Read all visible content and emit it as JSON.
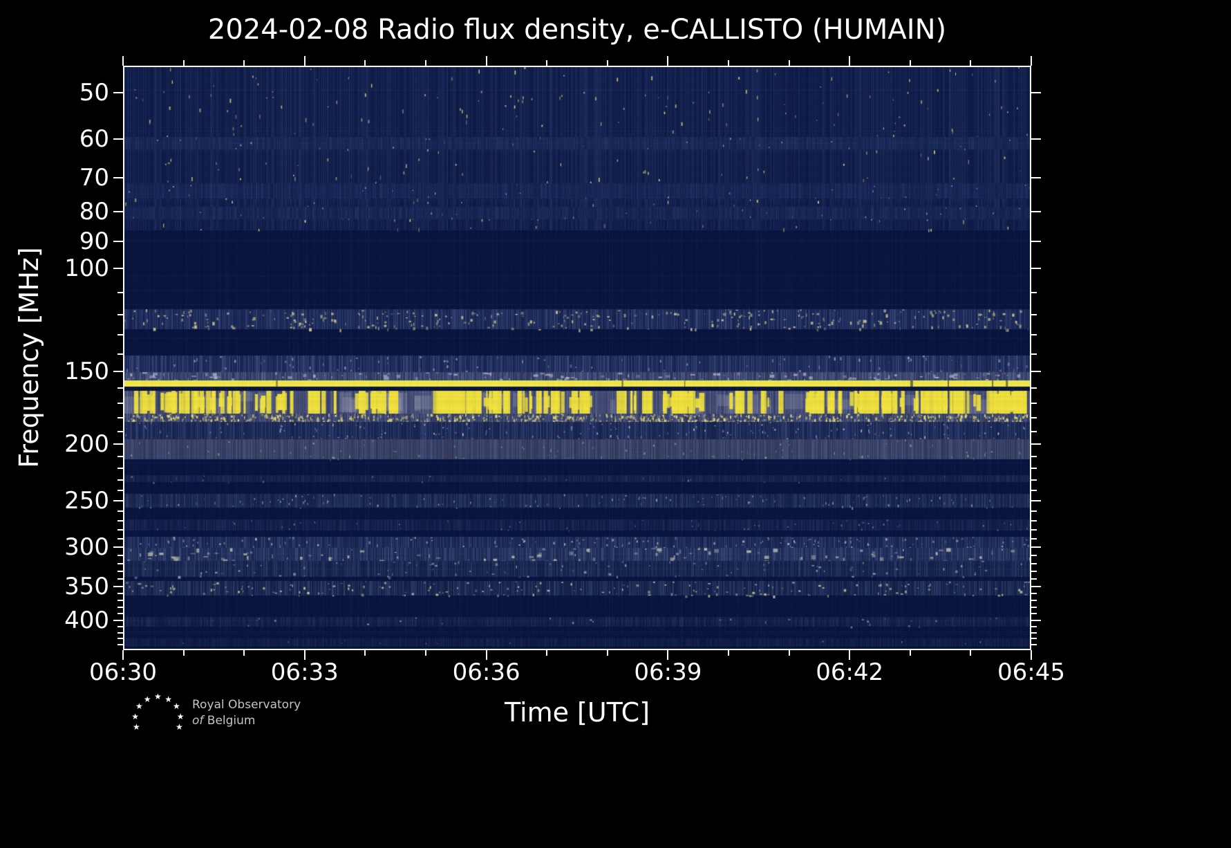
{
  "title": "2024-02-08 Radio flux density, e-CALLISTO (HUMAIN)",
  "xlabel": "Time [UTC]",
  "ylabel": "Frequency [MHz]",
  "footer": {
    "org_line1": "Royal Observatory",
    "org_line2_prefix": "of",
    "org_line2": "Belgium"
  },
  "chart_data": {
    "type": "heatmap",
    "title": "2024-02-08 Radio flux density, e-CALLISTO (HUMAIN)",
    "xlabel": "Time [UTC]",
    "ylabel": "Frequency [MHz]",
    "x_ticks": [
      "06:30",
      "06:33",
      "06:36",
      "06:39",
      "06:42",
      "06:45"
    ],
    "x_major_interval_min": 3,
    "x_minor_interval_min": 1,
    "y_ticks": [
      50,
      60,
      70,
      80,
      90,
      100,
      150,
      200,
      250,
      300,
      350,
      400
    ],
    "y_scale": "log",
    "y_axis_inverted": true,
    "y_range_mhz": [
      45,
      450
    ],
    "grid": false,
    "legend": "none",
    "colormap": {
      "background": "#0a1640",
      "low": "#16295f",
      "mid": "#3c4a78",
      "high": "#b8b9a8",
      "peak": "#f8ef4e"
    },
    "features": [
      {
        "f0": 45,
        "f1": 86,
        "kind": "noise",
        "tint": "#111f4d",
        "colNoise": 0.1,
        "speckles": 300,
        "speckleColor": "#e6d97e",
        "speckleW": 1,
        "speckleH": 5,
        "desc": "broadband background noise with sparse RFI speckles"
      },
      {
        "f0": 59.5,
        "f1": 62.5,
        "kind": "noise",
        "tint": "#182858",
        "colNoise": 0.08,
        "speckles": 30,
        "speckleColor": "#aeb6cf",
        "speckleW": 1,
        "speckleH": 2,
        "desc": "faint horizontal band ~60 MHz"
      },
      {
        "f0": 71.5,
        "f1": 76,
        "kind": "noise",
        "tint": "#172656",
        "colNoise": 0.08,
        "speckles": 30,
        "speckleColor": "#aeb6cf",
        "speckleW": 1,
        "speckleH": 2,
        "desc": "faint band ~74 MHz"
      },
      {
        "f0": 78.5,
        "f1": 82.5,
        "kind": "noise",
        "tint": "#172656",
        "colNoise": 0.08,
        "speckles": 30,
        "speckleColor": "#aeb6cf",
        "speckleW": 1,
        "speckleH": 2,
        "desc": "faint band ~80 MHz"
      },
      {
        "f0": 117.5,
        "f1": 127,
        "kind": "noise",
        "tint": "#1c2b5b",
        "colNoise": 0.2,
        "speckles": 330,
        "speckleColor": "#d0c88e",
        "speckleW": 3,
        "speckleH": 4,
        "desc": "speckled interference band ~120 MHz"
      },
      {
        "f0": 141,
        "f1": 150.5,
        "kind": "noise",
        "tint": "#1f2e5e",
        "colNoise": 0.22,
        "speckles": 90,
        "speckleColor": "#97a0bd",
        "speckleW": 2,
        "speckleH": 4,
        "desc": "noise band 141-150 MHz"
      },
      {
        "f0": 150.5,
        "f1": 155.5,
        "kind": "noise",
        "tint": "#3b466f",
        "colNoise": 0.26,
        "speckles": 140,
        "speckleColor": "#a6aec6",
        "speckleW": 6,
        "speckleH": 4,
        "desc": "grey haze just above carrier"
      },
      {
        "f0": 155.5,
        "f1": 159.5,
        "kind": "line",
        "color": "#f8ef4e",
        "gaps": 7,
        "desc": "strong continuous RFI carrier ~157 MHz"
      },
      {
        "f0": 162,
        "f1": 177,
        "kind": "bursts",
        "tint": "#474f78",
        "colNoise": 0.22,
        "barColor": "#f6e73f",
        "clusters": 95,
        "maxBars": 6,
        "grayPatches": 40,
        "desc": "intermittent strong RFI bursts 162-177 MHz"
      },
      {
        "f0": 177,
        "f1": 183,
        "kind": "noise",
        "tint": "#3d4670",
        "colNoise": 0.25,
        "speckles": 750,
        "speckleColor": "#ece07c",
        "speckleW": 2,
        "speckleH": 4,
        "desc": "dense speckled row below burst band"
      },
      {
        "f0": 183,
        "f1": 196,
        "kind": "noise",
        "tint": "#1b2a58",
        "colNoise": 0.18,
        "speckles": 170,
        "speckleColor": "#b8bed2",
        "speckleW": 1,
        "speckleH": 3,
        "desc": "noise band 183-196 MHz"
      },
      {
        "f0": 196,
        "f1": 212,
        "kind": "noise",
        "tint": "#3a4268",
        "colNoise": 0.16,
        "speckles": 90,
        "speckleColor": "#8a92ab",
        "speckleW": 2,
        "speckleH": 3,
        "desc": "grey band ~200 MHz"
      },
      {
        "f0": 226,
        "f1": 232,
        "kind": "noise",
        "tint": "#13214d",
        "colNoise": 0.1,
        "speckles": 25,
        "speckleColor": "#8a92ab",
        "speckleW": 1,
        "speckleH": 2,
        "desc": "faint band ~229 MHz"
      },
      {
        "f0": 243,
        "f1": 257,
        "kind": "noise",
        "tint": "#18274f",
        "colNoise": 0.16,
        "speckles": 130,
        "speckleColor": "#9ba5c2",
        "speckleW": 1,
        "speckleH": 3,
        "desc": "band ~250 MHz"
      },
      {
        "f0": 269,
        "f1": 281,
        "kind": "noise",
        "tint": "#121f4b",
        "colNoise": 0.1,
        "speckles": 55,
        "speckleColor": "#8a92ab",
        "speckleW": 1,
        "speckleH": 2,
        "desc": "faint band ~275 MHz"
      },
      {
        "f0": 288,
        "f1": 301,
        "kind": "noise",
        "tint": "#1b2b59",
        "colNoise": 0.18,
        "speckles": 150,
        "speckleColor": "#b7bdcd",
        "speckleW": 2,
        "speckleH": 3,
        "desc": "band ~295 MHz"
      },
      {
        "f0": 301,
        "f1": 317,
        "kind": "noise",
        "tint": "#22315f",
        "colNoise": 0.2,
        "speckles": 120,
        "speckleColor": "#b9bcae",
        "speckleW": 6,
        "speckleH": 5,
        "desc": "blobby grey band ~310 MHz"
      },
      {
        "f0": 317,
        "f1": 337,
        "kind": "noise",
        "tint": "#162650",
        "colNoise": 0.15,
        "speckles": 100,
        "speckleColor": "#9aa2b8",
        "speckleW": 3,
        "speckleH": 3,
        "desc": "band ~325 MHz"
      },
      {
        "f0": 343,
        "f1": 363,
        "kind": "noise",
        "tint": "#172650",
        "colNoise": 0.18,
        "speckles": 190,
        "speckleColor": "#c4be98",
        "speckleW": 3,
        "speckleH": 3,
        "desc": "band ~350 MHz"
      },
      {
        "f0": 395,
        "f1": 410,
        "kind": "noise",
        "tint": "#111f49",
        "colNoise": 0.1,
        "speckles": 30,
        "speckleColor": "#8a93b0",
        "speckleW": 2,
        "speckleH": 2,
        "desc": "faint band ~400 MHz"
      },
      {
        "f0": 430,
        "f1": 443,
        "kind": "noise",
        "tint": "#0f1c45",
        "colNoise": 0.08,
        "speckles": 12,
        "speckleColor": "#8a93b0",
        "speckleW": 1,
        "speckleH": 2,
        "desc": "very faint band ~436 MHz"
      }
    ]
  }
}
